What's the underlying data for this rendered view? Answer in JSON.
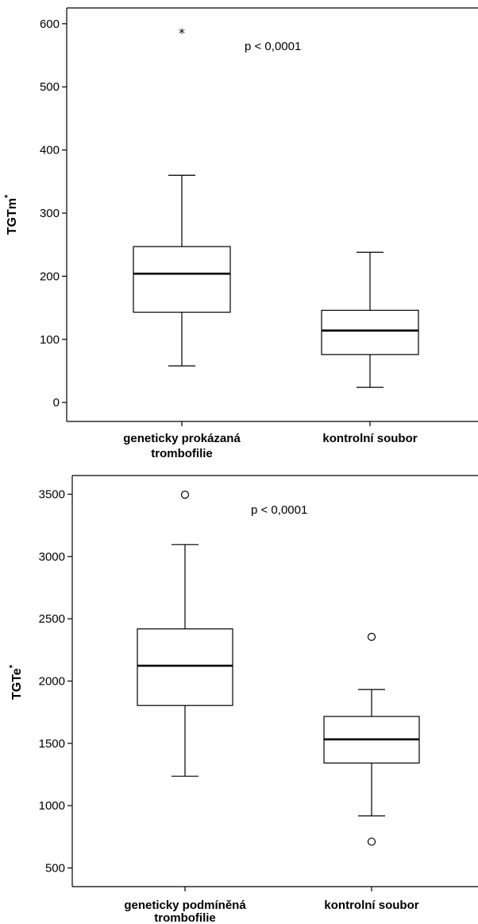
{
  "chart_data": [
    {
      "type": "boxplot",
      "ylabel": "TGTm",
      "ylabel_sup": "*",
      "annotation": "p < 0,0001",
      "ylim": [
        -30,
        625
      ],
      "yticks": [
        0,
        100,
        200,
        300,
        400,
        500,
        600
      ],
      "yticklabels": [
        "0",
        "100",
        "200",
        "300",
        "400",
        "500",
        "600"
      ],
      "categories": [
        {
          "line1": "geneticky prokázaná",
          "line2": "trombofilie"
        },
        {
          "line1": "kontrolní soubor",
          "line2": ""
        }
      ],
      "boxes": [
        {
          "whisker_low": 58,
          "q1": 143,
          "median": 204,
          "q3": 247,
          "whisker_high": 360,
          "outliers": [
            {
              "value": 590,
              "symbol": "star",
              "glyph": "*"
            }
          ]
        },
        {
          "whisker_low": 24,
          "q1": 76,
          "median": 114,
          "q3": 146,
          "whisker_high": 238,
          "outliers": []
        }
      ]
    },
    {
      "type": "boxplot",
      "ylabel": "TGTe",
      "ylabel_sup": "*",
      "annotation": "p < 0,0001",
      "ylim": [
        350,
        3650
      ],
      "yticks": [
        500,
        1000,
        1500,
        2000,
        2500,
        3000,
        3500
      ],
      "yticklabels": [
        "500",
        "1000",
        "1500",
        "2000",
        "2500",
        "3000",
        "3500"
      ],
      "categories": [
        {
          "line1": "geneticky podmíněná",
          "line2": "trombofilie"
        },
        {
          "line1": "kontrolní soubor",
          "line2": ""
        }
      ],
      "boxes": [
        {
          "whisker_low": 1236,
          "q1": 1804,
          "median": 2123,
          "q3": 2419,
          "whisker_high": 3096,
          "outliers": [
            {
              "value": 3496,
              "symbol": "circle",
              "glyph": ""
            }
          ]
        },
        {
          "whisker_low": 918,
          "q1": 1342,
          "median": 1532,
          "q3": 1716,
          "whisker_high": 1932,
          "outliers": [
            {
              "value": 2355,
              "symbol": "circle",
              "glyph": ""
            },
            {
              "value": 711,
              "symbol": "circle",
              "glyph": ""
            }
          ]
        }
      ]
    }
  ]
}
